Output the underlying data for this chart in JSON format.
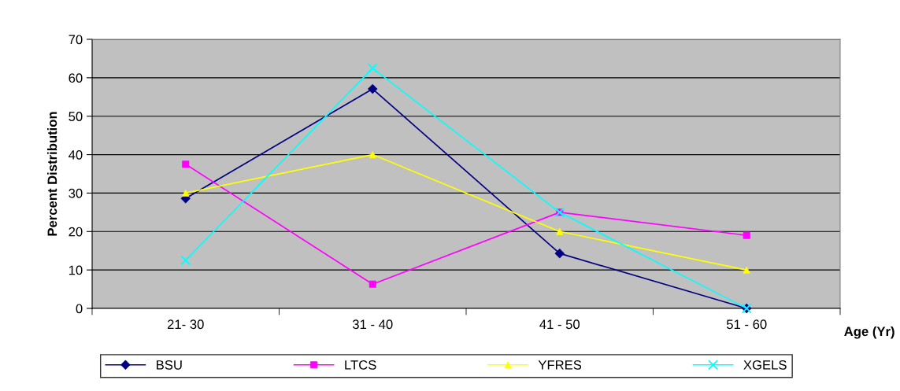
{
  "chart_data": {
    "type": "line",
    "ylabel": "Percent Distribution",
    "xlabel": "Age (Yr)",
    "categories": [
      "21- 30",
      "31 - 40",
      "41 - 50",
      "51 - 60"
    ],
    "series": [
      {
        "name": "BSU",
        "color": "#000080",
        "marker": "diamond",
        "values": [
          28.6,
          57.1,
          14.3,
          0
        ]
      },
      {
        "name": "LTCS",
        "color": "#ff00ff",
        "marker": "square",
        "values": [
          37.5,
          6.3,
          25,
          19
        ]
      },
      {
        "name": "YFRES",
        "color": "#ffff00",
        "marker": "triangle",
        "values": [
          30,
          40,
          20,
          10
        ]
      },
      {
        "name": "XGELS",
        "color": "#00ffff",
        "marker": "cross",
        "values": [
          12.5,
          62.5,
          25,
          0
        ]
      }
    ],
    "ylim": [
      0,
      70
    ],
    "yticks": [
      0,
      10,
      20,
      30,
      40,
      50,
      60,
      70
    ],
    "grid": "y",
    "legend": "bottom",
    "line_style": "solid"
  }
}
